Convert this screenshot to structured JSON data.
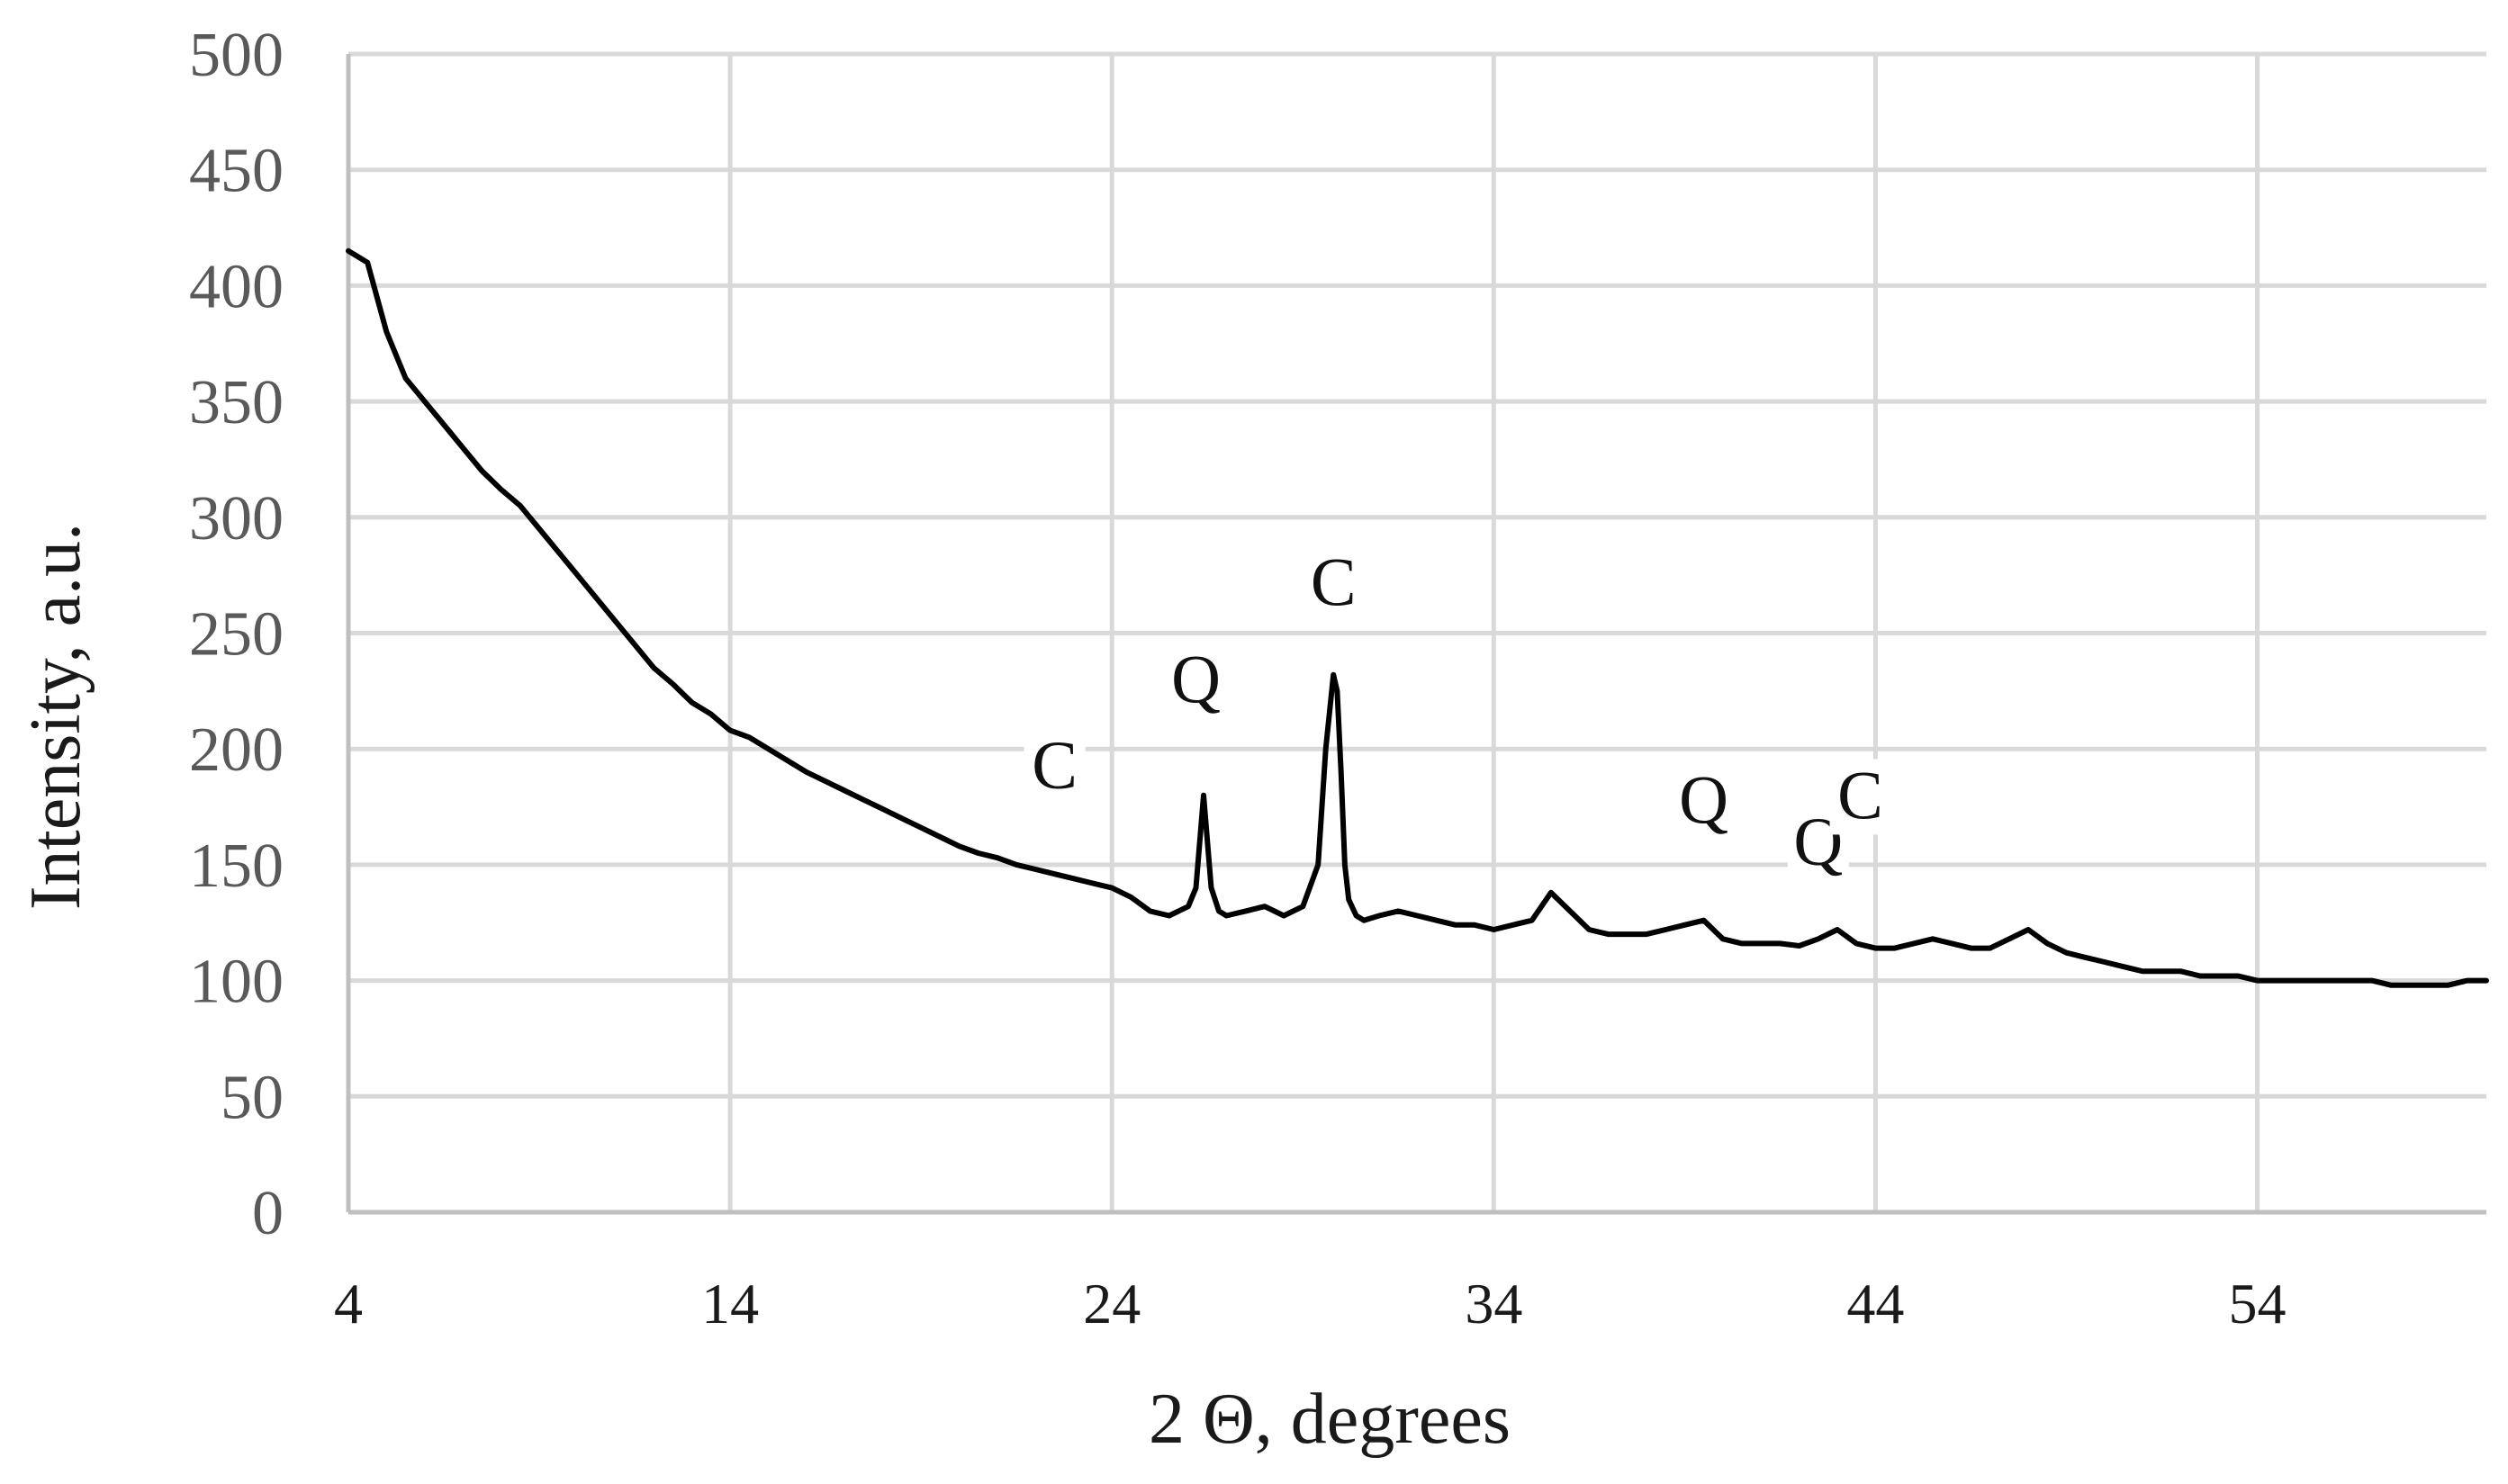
{
  "chart_data": {
    "type": "line",
    "title": "",
    "xlabel": "2 Θ, degrees",
    "ylabel": "Intensity, a.u.",
    "xlim": [
      4,
      60
    ],
    "ylim": [
      0,
      500
    ],
    "x_ticks": [
      4,
      14,
      24,
      34,
      44,
      54
    ],
    "x_tick_labels": [
      "4",
      "14",
      "24",
      "34",
      "44",
      "54"
    ],
    "y_ticks": [
      0,
      50,
      100,
      150,
      200,
      250,
      300,
      350,
      400,
      450,
      500
    ],
    "y_tick_labels": [
      "0",
      "50",
      "100",
      "150",
      "200",
      "250",
      "300",
      "350",
      "400",
      "450",
      "500"
    ],
    "grid": true,
    "legend": "none",
    "colors": {
      "line": "#000000",
      "grid": "#d9d9d9",
      "axis": "#bfbfbf"
    },
    "series": [
      {
        "x": [
          4,
          4.5,
          5,
          5.5,
          6,
          6.5,
          7,
          7.5,
          8,
          8.5,
          9,
          9.5,
          10,
          10.5,
          11,
          11.5,
          12,
          12.5,
          13,
          13.5,
          14,
          14.5,
          15,
          15.5,
          16,
          16.5,
          17,
          17.5,
          18,
          18.5,
          19,
          19.5,
          20,
          20.5,
          21,
          21.5,
          22,
          22.5,
          23,
          23.5,
          24,
          24.5,
          25,
          25.5,
          26,
          26.2,
          26.4,
          26.6,
          26.8,
          27,
          27.5,
          28,
          28.5,
          29,
          29.4,
          29.6,
          29.8,
          29.9,
          30,
          30.1,
          30.2,
          30.4,
          30.6,
          31,
          31.5,
          32,
          32.5,
          33,
          33.5,
          34,
          34.5,
          35,
          35.5,
          36,
          36.5,
          37,
          37.5,
          38,
          38.5,
          39,
          39.5,
          40,
          40.5,
          41,
          41.5,
          42,
          42.5,
          43,
          43.5,
          44,
          44.5,
          45,
          45.5,
          46,
          46.5,
          47,
          47.5,
          48,
          48.5,
          49,
          49.5,
          50,
          50.5,
          51,
          51.5,
          52,
          52.5,
          53,
          53.5,
          54,
          54.5,
          55,
          55.5,
          56,
          56.5,
          57,
          57.5,
          58,
          58.5,
          59,
          59.5,
          60
        ],
        "y": [
          415,
          410,
          380,
          360,
          350,
          340,
          330,
          320,
          312,
          305,
          295,
          285,
          275,
          265,
          255,
          245,
          235,
          228,
          220,
          215,
          208,
          205,
          200,
          195,
          190,
          186,
          182,
          178,
          174,
          170,
          166,
          162,
          158,
          155,
          153,
          150,
          148,
          146,
          144,
          142,
          140,
          136,
          130,
          128,
          132,
          140,
          180,
          140,
          130,
          128,
          130,
          132,
          128,
          132,
          150,
          200,
          232,
          225,
          190,
          150,
          135,
          128,
          126,
          128,
          130,
          128,
          126,
          124,
          124,
          122,
          124,
          126,
          138,
          130,
          122,
          120,
          120,
          120,
          122,
          124,
          126,
          118,
          116,
          116,
          116,
          115,
          118,
          122,
          116,
          114,
          114,
          116,
          118,
          116,
          114,
          114,
          118,
          122,
          116,
          112,
          110,
          108,
          106,
          104,
          104,
          104,
          102,
          102,
          102,
          100,
          100,
          100,
          100,
          100,
          100,
          100,
          98,
          98,
          98,
          98,
          100,
          100
        ]
      }
    ],
    "annotations": [
      {
        "text": "C",
        "x": 22.5,
        "y": 183
      },
      {
        "text": "Q",
        "x": 26.2,
        "y": 220
      },
      {
        "text": "C",
        "x": 29.8,
        "y": 262
      },
      {
        "text": "Q",
        "x": 39.5,
        "y": 168
      },
      {
        "text": "Q",
        "x": 42.5,
        "y": 150
      },
      {
        "text": "C",
        "x": 43.6,
        "y": 170
      }
    ]
  }
}
